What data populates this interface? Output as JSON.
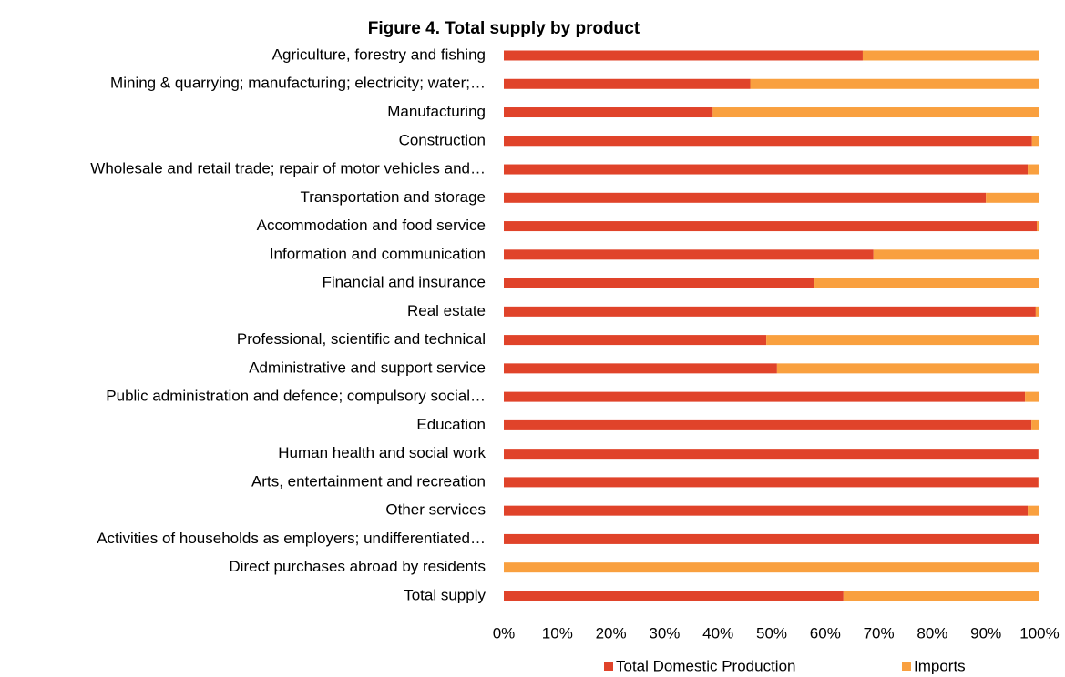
{
  "chart_data": {
    "type": "stacked_barh",
    "title": "Figure 4. Total supply by product",
    "categories": [
      "Agriculture, forestry and fishing",
      "Mining & quarrying; manufacturing; electricity; water;…",
      "Manufacturing",
      "Construction",
      "Wholesale and retail trade; repair of motor vehicles and…",
      "Transportation and storage",
      "Accommodation and food service",
      "Information and communication",
      "Financial and insurance",
      "Real estate",
      "Professional, scientific and technical",
      "Administrative and support service",
      "Public administration and defence; compulsory social…",
      "Education",
      "Human health and social work",
      "Arts, entertainment and recreation",
      "Other services",
      "Activities of households as employers; undifferentiated…",
      "Direct purchases abroad by residents",
      "Total supply"
    ],
    "series": [
      {
        "name": "Total Domestic Production",
        "color": "#e0432a",
        "values": [
          67,
          46,
          39,
          98.6,
          97.8,
          90,
          99.5,
          69,
          58,
          99.3,
          49,
          51,
          97.3,
          98.5,
          99.8,
          99.8,
          97.8,
          100,
          0,
          63.4
        ]
      },
      {
        "name": "Imports",
        "color": "#f9a03f",
        "values": [
          33,
          54,
          61,
          1.4,
          2.2,
          10,
          0.5,
          31,
          42,
          0.7,
          51,
          49,
          2.7,
          1.5,
          0.2,
          0.2,
          2.2,
          0,
          100,
          36.6
        ]
      }
    ],
    "xlim": [
      0,
      100
    ],
    "xticks": [
      {
        "value": 0,
        "label": "0%"
      },
      {
        "value": 10,
        "label": "10%"
      },
      {
        "value": 20,
        "label": "20%"
      },
      {
        "value": 30,
        "label": "30%"
      },
      {
        "value": 40,
        "label": "40%"
      },
      {
        "value": 50,
        "label": "50%"
      },
      {
        "value": 60,
        "label": "60%"
      },
      {
        "value": 70,
        "label": "70%"
      },
      {
        "value": 80,
        "label": "80%"
      },
      {
        "value": 90,
        "label": "90%"
      },
      {
        "value": 100,
        "label": "100%"
      }
    ],
    "legend": "bottom"
  }
}
